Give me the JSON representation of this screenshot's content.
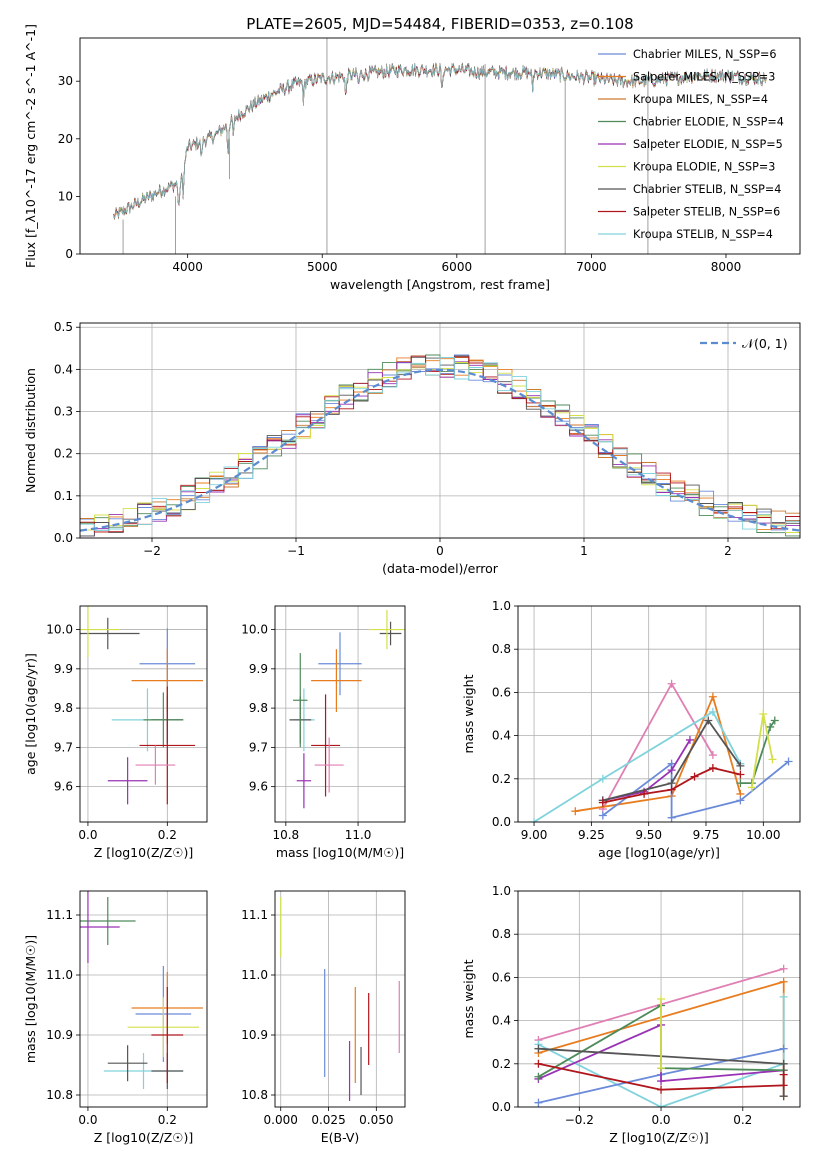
{
  "figure_title": "PLATE=2605, MJD=54484, FIBERID=0353, z=0.108",
  "colors": {
    "chabrier_miles": "#6b8bd9",
    "salpeter_miles": "#e87d20",
    "kroupa_miles": "#cc7a30",
    "chabrier_elodie": "#4f8a5a",
    "salpeter_elodie": "#9932b4",
    "kroupa_elodie": "#d4e04a",
    "chabrier_stelib": "#555555",
    "salpeter_stelib": "#b0161c",
    "kroupa_stelib": "#80d3dc",
    "pink": "#e07fb3",
    "gaussian": "#5b8bd0",
    "grid": "#b0b0b0"
  },
  "chart_data": [
    {
      "id": "spectrum",
      "type": "line",
      "title": "PLATE=2605, MJD=54484, FIBERID=0353, z=0.108",
      "xlabel": "wavelength [Angstrom, rest frame]",
      "ylabel": "Flux [f_λ10^-17 erg cm^-2 s^-1 A^-1]",
      "xlim": [
        3200,
        8550
      ],
      "ylim": [
        0,
        37.5
      ],
      "xticks": [
        4000,
        5000,
        6000,
        7000,
        8000
      ],
      "yticks": [
        0,
        10,
        20,
        30
      ],
      "grid": false,
      "legend_position": "top-right",
      "continuum": {
        "x": [
          3450,
          3600,
          3800,
          3950,
          4000,
          4200,
          4400,
          4600,
          4800,
          5000,
          5200,
          5400,
          5600,
          5800,
          6000,
          6200,
          6400,
          6600,
          6800,
          7000,
          7200,
          7400,
          7600,
          7800,
          8000,
          8200,
          8300
        ],
        "y": [
          6.5,
          8.5,
          11,
          12.5,
          18.5,
          20.5,
          24.5,
          27.5,
          29.5,
          30.5,
          31,
          31.5,
          32,
          32,
          32,
          31.5,
          31.5,
          31.5,
          31,
          30.5,
          30,
          30,
          30.5,
          31,
          31,
          30.5,
          30.5
        ]
      },
      "series": [
        {
          "name": "Chabrier MILES, N_SSP=6"
        },
        {
          "name": "Salpeter MILES, N_SSP=3"
        },
        {
          "name": "Kroupa MILES, N_SSP=4"
        },
        {
          "name": "Chabrier ELODIE, N_SSP=4"
        },
        {
          "name": "Salpeter ELODIE, N_SSP=5"
        },
        {
          "name": "Kroupa ELODIE, N_SSP=3"
        },
        {
          "name": "Chabrier STELIB, N_SSP=4"
        },
        {
          "name": "Salpeter STELIB, N_SSP=6"
        },
        {
          "name": "Kroupa STELIB, N_SSP=4"
        }
      ]
    },
    {
      "id": "residuals",
      "type": "line",
      "xlabel": "(data-model)/error",
      "ylabel": "Normed distribution",
      "xlim": [
        -2.5,
        2.5
      ],
      "ylim": [
        0,
        0.51
      ],
      "xticks": [
        -2,
        -1,
        0,
        1,
        2
      ],
      "yticks": [
        0.0,
        0.1,
        0.2,
        0.3,
        0.4,
        0.5
      ],
      "grid": true,
      "legend_position": "top-right",
      "legend": "𝒩(0, 1)",
      "gaussian": {
        "mean": 0,
        "sigma": 1
      }
    },
    {
      "id": "age_vs_Z",
      "type": "scatter",
      "xlabel": "Z [log10(Z/Z☉)]",
      "ylabel": "age  [log10(age/yr)]",
      "xlim": [
        -0.02,
        0.3
      ],
      "ylim": [
        9.51,
        10.06
      ],
      "xticks": [
        0.0,
        0.2
      ],
      "yticks": [
        9.6,
        9.7,
        9.8,
        9.9,
        10.0
      ],
      "grid": true,
      "points": [
        {
          "x": 0.2,
          "y": 9.913,
          "xerr": 0.07,
          "yerr": 0.09
        },
        {
          "x": 0.2,
          "y": 9.87,
          "xerr": 0.09,
          "yerr": 0.08
        },
        {
          "x": 0.15,
          "y": 9.77,
          "xerr": 0.09,
          "yerr": 0.08
        },
        {
          "x": 0.2,
          "y": 9.77,
          "xerr": 0.04,
          "yerr": 0.06
        },
        {
          "x": 0.19,
          "y": 9.77,
          "xerr": 0.05,
          "yerr": 0.07
        },
        {
          "x": 0.05,
          "y": 9.99,
          "xerr": 0.08,
          "yerr": 0.04
        },
        {
          "x": 0.1,
          "y": 9.615,
          "xerr": 0.05,
          "yerr": 0.06
        },
        {
          "x": 0.0,
          "y": 10.0,
          "xerr": 0.08,
          "yerr": 0.07
        },
        {
          "x": 0.2,
          "y": 9.705,
          "xerr": 0.07,
          "yerr": 0.15
        },
        {
          "x": 0.17,
          "y": 9.655,
          "xerr": 0.05,
          "yerr": 0.05
        }
      ]
    },
    {
      "id": "age_vs_mass",
      "type": "scatter",
      "xlabel": "mass [log10(M/M☉)]",
      "xlim": [
        10.77,
        11.13
      ],
      "ylim": [
        9.51,
        10.06
      ],
      "xticks": [
        10.8,
        11.0
      ],
      "yticks": [
        9.6,
        9.7,
        9.8,
        9.9,
        10.0
      ],
      "grid": true,
      "points": [
        {
          "x": 10.95,
          "y": 9.913,
          "xerr": 0.06,
          "yerr": 0.08
        },
        {
          "x": 10.94,
          "y": 9.87,
          "xerr": 0.07,
          "yerr": 0.08
        },
        {
          "x": 10.85,
          "y": 9.77,
          "xerr": 0.03,
          "yerr": 0.08
        },
        {
          "x": 10.84,
          "y": 9.77,
          "xerr": 0.03,
          "yerr": 0.06
        },
        {
          "x": 10.84,
          "y": 9.82,
          "xerr": 0.02,
          "yerr": 0.12
        },
        {
          "x": 11.09,
          "y": 9.99,
          "xerr": 0.03,
          "yerr": 0.03
        },
        {
          "x": 10.85,
          "y": 9.615,
          "xerr": 0.02,
          "yerr": 0.07
        },
        {
          "x": 11.08,
          "y": 10.0,
          "xerr": 0.05,
          "yerr": 0.05
        },
        {
          "x": 10.91,
          "y": 9.705,
          "xerr": 0.04,
          "yerr": 0.13
        },
        {
          "x": 10.92,
          "y": 9.655,
          "xerr": 0.04,
          "yerr": 0.07
        }
      ]
    },
    {
      "id": "mass_weight_vs_age",
      "type": "line",
      "xlabel": "age  [log10(age/yr)]",
      "ylabel": "mass weight",
      "xlim": [
        8.93,
        10.16
      ],
      "ylim": [
        0,
        1
      ],
      "xticks": [
        9.0,
        9.25,
        9.5,
        9.75,
        10.0
      ],
      "yticks": [
        0.0,
        0.2,
        0.4,
        0.6,
        0.8,
        1.0
      ],
      "grid": true,
      "series": [
        {
          "color": "pink",
          "x": [
            9.3,
            9.6,
            9.78
          ],
          "y": [
            0.06,
            0.64,
            0.31
          ]
        },
        {
          "color": "salpeter_miles",
          "x": [
            9.18,
            9.6,
            9.78,
            9.9
          ],
          "y": [
            0.05,
            0.12,
            0.58,
            0.13
          ]
        },
        {
          "color": "kroupa_stelib",
          "x": [
            9.0,
            9.3,
            9.78,
            9.9
          ],
          "y": [
            0.0,
            0.2,
            0.51,
            0.27
          ]
        },
        {
          "color": "chabrier_miles",
          "x": [
            9.3,
            9.6,
            9.6,
            9.9,
            10.11
          ],
          "y": [
            0.03,
            0.27,
            0.02,
            0.1,
            0.28
          ]
        },
        {
          "color": "salpeter_elodie",
          "x": [
            9.3,
            9.48,
            9.6,
            9.68
          ],
          "y": [
            0.1,
            0.14,
            0.24,
            0.38
          ]
        },
        {
          "color": "chabrier_stelib",
          "x": [
            9.3,
            9.6,
            9.76,
            9.9
          ],
          "y": [
            0.1,
            0.18,
            0.47,
            0.26
          ]
        },
        {
          "color": "salpeter_stelib",
          "x": [
            9.3,
            9.48,
            9.6,
            9.7,
            9.78,
            9.9
          ],
          "y": [
            0.09,
            0.13,
            0.15,
            0.21,
            0.25,
            0.22
          ]
        },
        {
          "color": "chabrier_elodie",
          "x": [
            9.9,
            9.95,
            10.03,
            10.05
          ],
          "y": [
            0.18,
            0.18,
            0.44,
            0.47
          ]
        },
        {
          "color": "kroupa_elodie",
          "x": [
            9.95,
            10.0,
            10.04
          ],
          "y": [
            0.16,
            0.5,
            0.29
          ]
        }
      ]
    },
    {
      "id": "mass_vs_Z",
      "type": "scatter",
      "xlabel": "Z [log10(Z/Z☉)]",
      "ylabel": "mass [log10(M/M☉)]",
      "xlim": [
        -0.02,
        0.3
      ],
      "ylim": [
        10.78,
        11.14
      ],
      "xticks": [
        0.0,
        0.2
      ],
      "yticks": [
        10.8,
        10.9,
        11.0,
        11.1
      ],
      "grid": true,
      "points": [
        {
          "x": 0.19,
          "y": 10.935,
          "xerr": 0.07,
          "yerr": 0.08
        },
        {
          "x": 0.2,
          "y": 10.945,
          "xerr": 0.09,
          "yerr": 0.06
        },
        {
          "x": 0.14,
          "y": 10.84,
          "xerr": 0.1,
          "yerr": 0.03
        },
        {
          "x": 0.2,
          "y": 10.84,
          "xerr": 0.04,
          "yerr": 0.03
        },
        {
          "x": 0.05,
          "y": 11.09,
          "xerr": 0.07,
          "yerr": 0.04
        },
        {
          "x": 0.1,
          "y": 10.853,
          "xerr": 0.05,
          "yerr": 0.03
        },
        {
          "x": 0.0,
          "y": 11.08,
          "xerr": 0.08,
          "yerr": 0.06
        },
        {
          "x": 0.19,
          "y": 10.913,
          "xerr": 0.09,
          "yerr": 0.05
        },
        {
          "x": 0.2,
          "y": 10.9,
          "xerr": 0.04,
          "yerr": 0.08
        }
      ]
    },
    {
      "id": "mass_vs_ebv",
      "type": "scatter",
      "xlabel": "E(B-V)",
      "xlim": [
        -0.003,
        0.065
      ],
      "ylim": [
        10.78,
        11.14
      ],
      "xticks": [
        0.0,
        0.025,
        0.05
      ],
      "yticks": [
        10.8,
        10.9,
        11.0,
        11.1
      ],
      "grid": true,
      "points": [
        {
          "x": 0.0,
          "y": 11.08,
          "yerr": 0.05
        },
        {
          "x": 0.023,
          "y": 10.92,
          "yerr": 0.09
        },
        {
          "x": 0.036,
          "y": 10.84,
          "yerr": 0.05
        },
        {
          "x": 0.039,
          "y": 10.9,
          "yerr": 0.08
        },
        {
          "x": 0.042,
          "y": 10.84,
          "yerr": 0.04
        },
        {
          "x": 0.046,
          "y": 10.91,
          "yerr": 0.06
        },
        {
          "x": 0.062,
          "y": 10.93,
          "yerr": 0.06
        }
      ]
    },
    {
      "id": "mass_weight_vs_Z",
      "type": "line",
      "xlabel": "Z [log10(Z/Z☉)]",
      "ylabel": "mass weight",
      "xlim": [
        -0.35,
        0.34
      ],
      "ylim": [
        0,
        1
      ],
      "xticks": [
        -0.2,
        0.0,
        0.2
      ],
      "yticks": [
        0.0,
        0.2,
        0.4,
        0.6,
        0.8,
        1.0
      ],
      "grid": true,
      "series": [
        {
          "color": "pink",
          "x": [
            -0.3,
            0.3
          ],
          "y": [
            0.31,
            0.64
          ]
        },
        {
          "color": "salpeter_miles",
          "x": [
            -0.3,
            0.3,
            0.3
          ],
          "y": [
            0.25,
            0.58,
            0.05
          ]
        },
        {
          "color": "kroupa_stelib",
          "x": [
            -0.3,
            0.0,
            0.3,
            0.3
          ],
          "y": [
            0.29,
            0.0,
            0.2,
            0.51
          ]
        },
        {
          "color": "chabrier_miles",
          "x": [
            -0.3,
            0.0,
            0.3
          ],
          "y": [
            0.02,
            0.15,
            0.27
          ]
        },
        {
          "color": "salpeter_elodie",
          "x": [
            -0.3,
            0.0,
            0.0,
            0.3
          ],
          "y": [
            0.13,
            0.38,
            0.12,
            0.17
          ]
        },
        {
          "color": "chabrier_elodie",
          "x": [
            -0.3,
            0.0,
            0.0,
            0.3
          ],
          "y": [
            0.14,
            0.47,
            0.18,
            0.17
          ]
        },
        {
          "color": "chabrier_stelib",
          "x": [
            -0.3,
            0.3,
            0.3
          ],
          "y": [
            0.27,
            0.2,
            0.05
          ]
        },
        {
          "color": "salpeter_stelib",
          "x": [
            -0.3,
            0.0,
            0.3,
            0.3
          ],
          "y": [
            0.2,
            0.08,
            0.1,
            0.15
          ]
        },
        {
          "color": "kroupa_elodie",
          "x": [
            0.0,
            0.0
          ],
          "y": [
            0.18,
            0.5
          ]
        }
      ]
    }
  ]
}
